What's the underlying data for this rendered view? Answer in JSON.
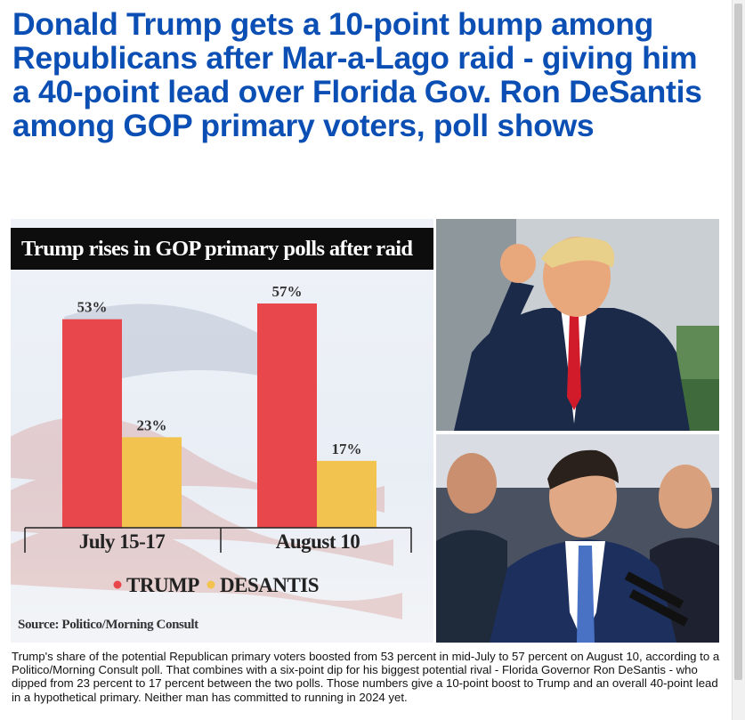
{
  "article": {
    "headline": "Donald Trump gets a 10-point bump among Republicans after Mar-a-Lago raid - giving him a 40-point lead over Florida Gov. Ron DeSantis among GOP primary voters, poll shows",
    "caption": "Trump's share of the potential Republican primary voters boosted from 53 percent in mid-July to 57 percent on August 10, according to a Politico/Morning Consult poll. That combines with a six-point dip for his biggest potential rival - Florida Governor Ron DeSantis - who dipped from 23 percent to 17 percent between the two polls. Those numbers give a 10-point boost to Trump and an overall 40-point lead in a hypothetical primary. Neither man has committed to running in 2024 yet."
  },
  "colors": {
    "headline": "#0b4fb5",
    "trump": "#e8484c",
    "desantis": "#f2c34e"
  },
  "chart_data": {
    "type": "bar",
    "title": "Trump rises in GOP primary polls after raid",
    "categories": [
      "July 15-17",
      "August 10"
    ],
    "series": [
      {
        "name": "TRUMP",
        "values": [
          53,
          57
        ],
        "labels": [
          "53%",
          "57%"
        ]
      },
      {
        "name": "DESANTIS",
        "values": [
          23,
          17
        ],
        "labels": [
          "23%",
          "17%"
        ]
      }
    ],
    "ylim": [
      0,
      60
    ],
    "legend": [
      "TRUMP",
      "DESANTIS"
    ],
    "source": "Source: Politico/Morning Consult"
  }
}
